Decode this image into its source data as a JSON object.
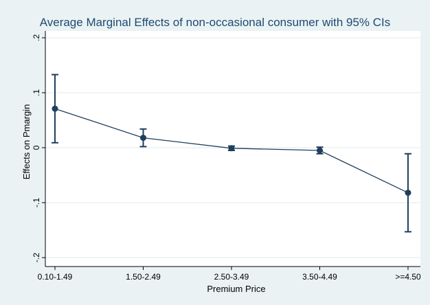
{
  "chart_data": {
    "type": "line",
    "title": "Average Marginal Effects of non-occasional consumer with 95% CIs",
    "xlabel": "Premium Price",
    "ylabel": "Effects on Pmargin",
    "categories": [
      "0.10-1.49",
      "1.50-2.49",
      "2.50-3.49",
      "3.50-4.49",
      ">=4.50"
    ],
    "series": [
      {
        "values": [
          0.071,
          0.018,
          -0.001,
          -0.005,
          -0.082
        ],
        "ci_lower": [
          0.009,
          0.002,
          -0.005,
          -0.011,
          -0.153
        ],
        "ci_upper": [
          0.133,
          0.034,
          0.003,
          0.001,
          -0.011
        ],
        "color": "#1f3f5e"
      }
    ],
    "ylim": [
      -0.2,
      0.2
    ],
    "yticks": [
      -0.2,
      -0.1,
      0,
      0.1,
      0.2
    ],
    "ytick_labels": [
      "-.2",
      "-.1",
      "0",
      ".1",
      ".2"
    ],
    "grid": true,
    "background": "#eaf2f3",
    "plot_background": "#ffffff",
    "grid_color": "#e2e9ea"
  }
}
